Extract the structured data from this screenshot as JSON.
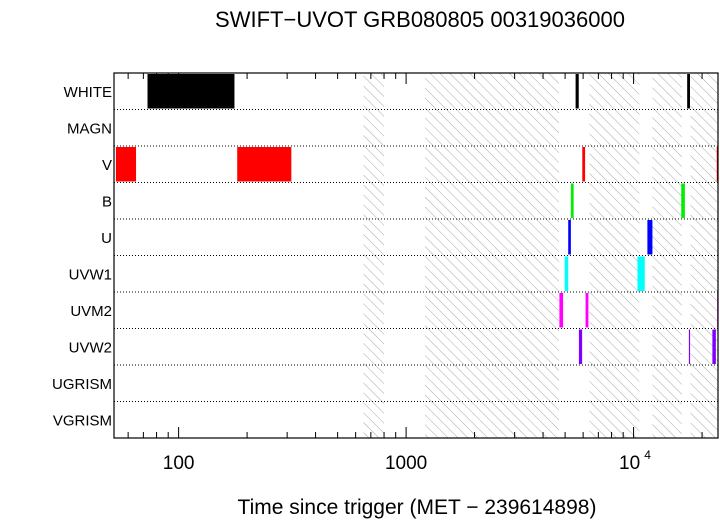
{
  "chart_data": {
    "type": "timeline",
    "title": "SWIFT−UVOT GRB080805 00319036000",
    "xlabel": "Time since trigger (MET − 239614898)",
    "xscale": "log",
    "xlim": [
      52,
      23500
    ],
    "x_ticks": [
      {
        "value": 100,
        "label": "100"
      },
      {
        "value": 1000,
        "label": "1000"
      },
      {
        "value": 10000,
        "label": "10",
        "exponent": "4"
      }
    ],
    "rows": [
      "WHITE",
      "MAGN",
      "V",
      "B",
      "U",
      "UVW1",
      "UVM2",
      "UVW2",
      "UGRISM",
      "VGRISM"
    ],
    "hatched_intervals": [
      [
        650,
        800
      ],
      [
        1210,
        4700
      ],
      [
        6400,
        10600
      ],
      [
        12100,
        16300
      ],
      [
        17800,
        23500
      ]
    ],
    "exposures": [
      {
        "filter": "WHITE",
        "start": 73,
        "end": 176,
        "color": "#000000"
      },
      {
        "filter": "WHITE",
        "start": 5560,
        "end": 5740,
        "color": "#000000"
      },
      {
        "filter": "WHITE",
        "start": 17200,
        "end": 17700,
        "color": "#000000"
      },
      {
        "filter": "V",
        "start": 53,
        "end": 65,
        "color": "#ff0000"
      },
      {
        "filter": "V",
        "start": 181,
        "end": 313,
        "color": "#ff0000"
      },
      {
        "filter": "V",
        "start": 5950,
        "end": 6120,
        "color": "#ff0000"
      },
      {
        "filter": "V",
        "start": 23200,
        "end": 23500,
        "color": "#ff0000"
      },
      {
        "filter": "B",
        "start": 5300,
        "end": 5450,
        "color": "#00ee00"
      },
      {
        "filter": "B",
        "start": 16200,
        "end": 16800,
        "color": "#00ee00"
      },
      {
        "filter": "U",
        "start": 5160,
        "end": 5300,
        "color": "#0000ff"
      },
      {
        "filter": "U",
        "start": 11500,
        "end": 12100,
        "color": "#0000ff"
      },
      {
        "filter": "UVW1",
        "start": 4980,
        "end": 5160,
        "color": "#00ffff"
      },
      {
        "filter": "UVW1",
        "start": 10400,
        "end": 11200,
        "color": "#00ffff"
      },
      {
        "filter": "UVM2",
        "start": 4720,
        "end": 4900,
        "color": "#ff00ff"
      },
      {
        "filter": "UVM2",
        "start": 6150,
        "end": 6330,
        "color": "#ff00ff"
      },
      {
        "filter": "UVM2",
        "start": 23300,
        "end": 23500,
        "color": "#ff00ff"
      },
      {
        "filter": "UVW2",
        "start": 5750,
        "end": 5940,
        "color": "#8000ff"
      },
      {
        "filter": "UVW2",
        "start": 17500,
        "end": 17600,
        "color": "#8000ff"
      },
      {
        "filter": "UVW2",
        "start": 22200,
        "end": 23000,
        "color": "#8000ff"
      }
    ]
  }
}
